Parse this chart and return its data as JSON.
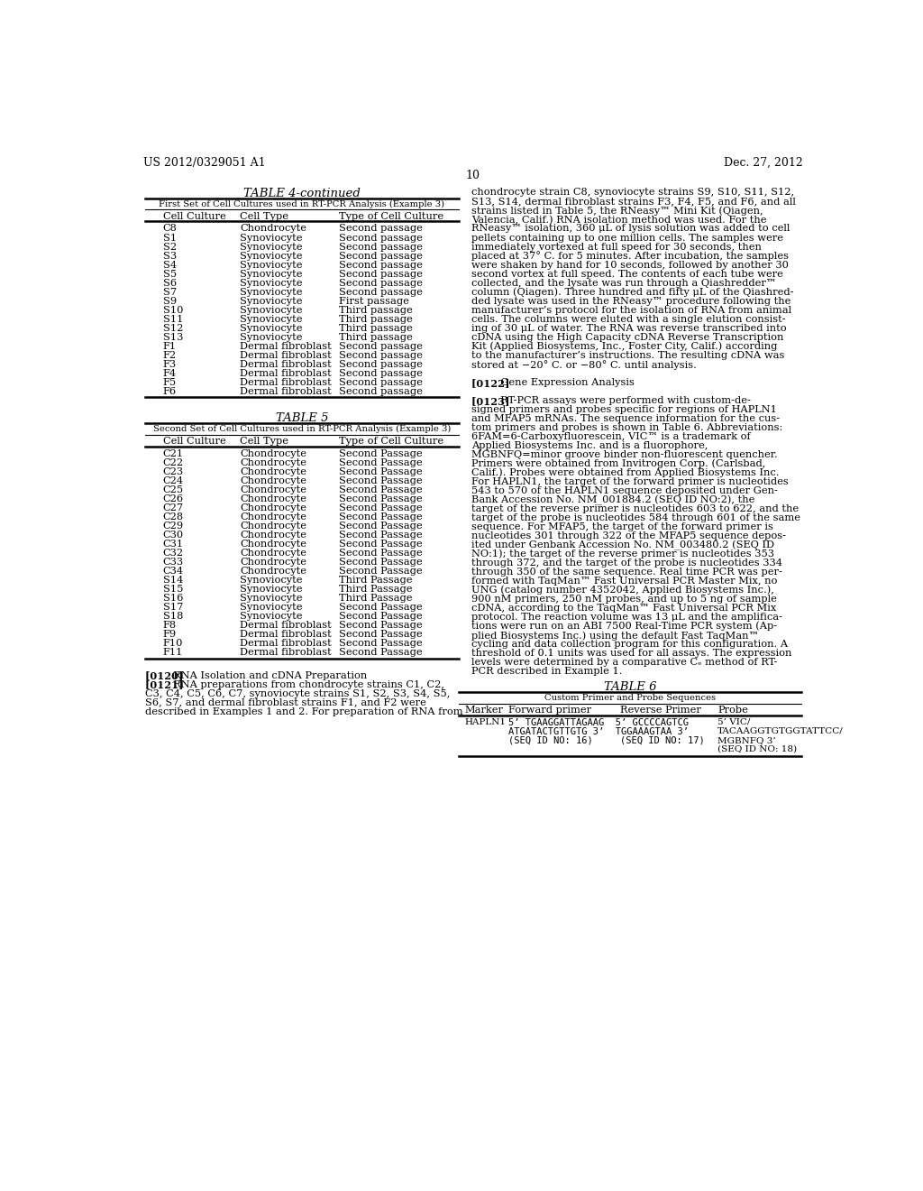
{
  "header_left": "US 2012/0329051 A1",
  "header_right": "Dec. 27, 2012",
  "page_number": "10",
  "table4_title": "TABLE 4-continued",
  "table4_subtitle": "First Set of Cell Cultures used in RT-PCR Analysis (Example 3)",
  "table4_col_headers": [
    "Cell Culture",
    "Cell Type",
    "Type of Cell Culture"
  ],
  "table4_rows": [
    [
      "C8",
      "Chondrocyte",
      "Second passage"
    ],
    [
      "S1",
      "Synoviocyte",
      "Second passage"
    ],
    [
      "S2",
      "Synoviocyte",
      "Second passage"
    ],
    [
      "S3",
      "Synoviocyte",
      "Second passage"
    ],
    [
      "S4",
      "Synoviocyte",
      "Second passage"
    ],
    [
      "S5",
      "Synoviocyte",
      "Second passage"
    ],
    [
      "S6",
      "Synoviocyte",
      "Second passage"
    ],
    [
      "S7",
      "Synoviocyte",
      "Second passage"
    ],
    [
      "S9",
      "Synoviocyte",
      "First passage"
    ],
    [
      "S10",
      "Synoviocyte",
      "Third passage"
    ],
    [
      "S11",
      "Synoviocyte",
      "Third passage"
    ],
    [
      "S12",
      "Synoviocyte",
      "Third passage"
    ],
    [
      "S13",
      "Synoviocyte",
      "Third passage"
    ],
    [
      "F1",
      "Dermal fibroblast",
      "Second passage"
    ],
    [
      "F2",
      "Dermal fibroblast",
      "Second passage"
    ],
    [
      "F3",
      "Dermal fibroblast",
      "Second passage"
    ],
    [
      "F4",
      "Dermal fibroblast",
      "Second passage"
    ],
    [
      "F5",
      "Dermal fibroblast",
      "Second passage"
    ],
    [
      "F6",
      "Dermal fibroblast",
      "Second passage"
    ]
  ],
  "table5_title": "TABLE 5",
  "table5_subtitle": "Second Set of Cell Cultures used in RT-PCR Analysis (Example 3)",
  "table5_col_headers": [
    "Cell Culture",
    "Cell Type",
    "Type of Cell Culture"
  ],
  "table5_rows": [
    [
      "C21",
      "Chondrocyte",
      "Second Passage"
    ],
    [
      "C22",
      "Chondrocyte",
      "Second Passage"
    ],
    [
      "C23",
      "Chondrocyte",
      "Second Passage"
    ],
    [
      "C24",
      "Chondrocyte",
      "Second Passage"
    ],
    [
      "C25",
      "Chondrocyte",
      "Second Passage"
    ],
    [
      "C26",
      "Chondrocyte",
      "Second Passage"
    ],
    [
      "C27",
      "Chondrocyte",
      "Second Passage"
    ],
    [
      "C28",
      "Chondrocyte",
      "Second Passage"
    ],
    [
      "C29",
      "Chondrocyte",
      "Second Passage"
    ],
    [
      "C30",
      "Chondrocyte",
      "Second Passage"
    ],
    [
      "C31",
      "Chondrocyte",
      "Second Passage"
    ],
    [
      "C32",
      "Chondrocyte",
      "Second Passage"
    ],
    [
      "C33",
      "Chondrocyte",
      "Second Passage"
    ],
    [
      "C34",
      "Chondrocyte",
      "Second Passage"
    ],
    [
      "S14",
      "Synoviocyte",
      "Third Passage"
    ],
    [
      "S15",
      "Synoviocyte",
      "Third Passage"
    ],
    [
      "S16",
      "Synoviocyte",
      "Third Passage"
    ],
    [
      "S17",
      "Synoviocyte",
      "Second Passage"
    ],
    [
      "S18",
      "Synoviocyte",
      "Second Passage"
    ],
    [
      "F8",
      "Dermal fibroblast",
      "Second Passage"
    ],
    [
      "F9",
      "Dermal fibroblast",
      "Second Passage"
    ],
    [
      "F10",
      "Dermal fibroblast",
      "Second Passage"
    ],
    [
      "F11",
      "Dermal fibroblast",
      "Second Passage"
    ]
  ],
  "right_text": [
    "chondrocyte strain C8, synoviocyte strains S9, S10, S11, S12,",
    "S13, S14, dermal fibroblast strains F3, F4, F5, and F6, and all",
    "strains listed in Table 5, the RNeasy™ Mini Kit (Qiagen,",
    "Valencia, Calif.) RNA isolation method was used. For the",
    "RNeasy™ isolation, 360 μL of lysis solution was added to cell",
    "pellets containing up to one million cells. The samples were",
    "immediately vortexed at full speed for 30 seconds, then",
    "placed at 37° C. for 5 minutes. After incubation, the samples",
    "were shaken by hand for 10 seconds, followed by another 30",
    "second vortex at full speed. The contents of each tube were",
    "collected, and the lysate was run through a Qiashredder™",
    "column (Qiagen). Three hundred and fifty μL of the Qiashred-",
    "ded lysate was used in the RNeasy™ procedure following the",
    "manufacturer’s protocol for the isolation of RNA from animal",
    "cells. The columns were eluted with a single elution consist-",
    "ing of 30 μL of water. The RNA was reverse transcribed into",
    "cDNA using the High Capacity cDNA Reverse Transcription",
    "Kit (Applied Biosystems, Inc., Foster City, Calif.) according",
    "to the manufacturer’s instructions. The resulting cDNA was",
    "stored at −20° C. or −80° C. until analysis.",
    "",
    "[0122]   Gene Expression Analysis",
    "",
    "[0123]   RT-PCR assays were performed with custom-de-",
    "signed primers and probes specific for regions of HAPLN1",
    "and MFAP5 mRNAs. The sequence information for the cus-",
    "tom primers and probes is shown in Table 6. Abbreviations:",
    "6FAM=6-Carboxyfluorescein, VIC™ is a trademark of",
    "Applied Biosystems Inc. and is a fluorophore,",
    "MGBNFQ=minor groove binder non-fluorescent quencher.",
    "Primers were obtained from Invitrogen Corp. (Carlsbad,",
    "Calif.). Probes were obtained from Applied Biosystems Inc.",
    "For HAPLN1, the target of the forward primer is nucleotides",
    "543 to 570 of the HAPLN1 sequence deposited under Gen-",
    "Bank Accession No. NM_001884.2 (SEQ ID NO:2), the",
    "target of the reverse primer is nucleotides 603 to 622, and the",
    "target of the probe is nucleotides 584 through 601 of the same",
    "sequence. For MFAP5, the target of the forward primer is",
    "nucleotides 301 through 322 of the MFAP5 sequence depos-",
    "ited under Genbank Accession No. NM_003480.2 (SEQ ID",
    "NO:1); the target of the reverse primer is nucleotides 353",
    "through 372, and the target of the probe is nucleotides 334",
    "through 350 of the same sequence. Real time PCR was per-",
    "formed with TaqMan™ Fast Universal PCR Master Mix, no",
    "UNG (catalog number 4352042, Applied Biosystems Inc.),",
    "900 nM primers, 250 nM probes, and up to 5 ng of sample",
    "cDNA, according to the TaqMan™ Fast Universal PCR Mix",
    "protocol. The reaction volume was 13 μL and the amplifica-",
    "tions were run on an ABI 7500 Real-Time PCR system (Ap-",
    "plied Biosystems Inc.) using the default Fast TaqMan™",
    "cycling and data collection program for this configuration. A",
    "threshold of 0.1 units was used for all assays. The expression",
    "levels were determined by a comparative Cₑ method of RT-",
    "PCR described in Example 1."
  ],
  "table6_title": "TABLE 6",
  "table6_subtitle": "Custom Primer and Probe Sequences",
  "table6_col_headers": [
    "Marker",
    "Forward primer",
    "Reverse Primer",
    "Probe"
  ],
  "table6_rows": [
    [
      "HAPLN1",
      "5’ TGAAGGATTAGAAG  5’ GCCCCAGTCG",
      "",
      "5’ VIC/"
    ],
    [
      "",
      "ATGATACTGTTGTG 3’  TGGAAAGTAA 3’",
      "",
      "TACAAGGTGTGGTATTCC/"
    ],
    [
      "",
      "(SEQ ID NO: 16)",
      "(SEQ ID NO: 17)",
      "MGBNFQ 3’"
    ],
    [
      "",
      "",
      "",
      "(SEQ ID NO: 18)"
    ]
  ],
  "left_text_bottom": [
    "[0120]   RNA Isolation and cDNA Preparation",
    "[0121]   RNA preparations from chondrocyte strains C1, C2,",
    "C3, C4, C5, C6, C7, synoviocyte strains S1, S2, S3, S4, S5,",
    "S6, S7, and dermal fibroblast strains F1, and F2 were",
    "described in Examples 1 and 2. For preparation of RNA from"
  ]
}
